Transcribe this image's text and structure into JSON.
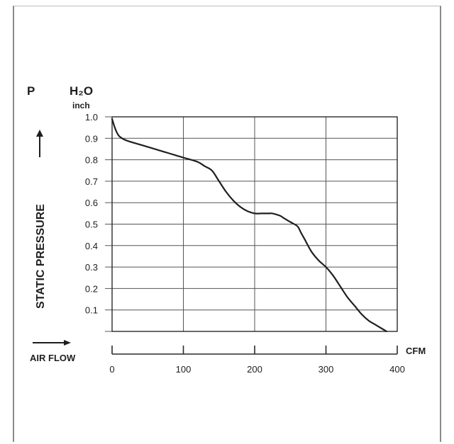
{
  "chart_data": {
    "type": "line",
    "y_label_top": "P",
    "unit_label": "H₂O",
    "unit_sublabel": "inch",
    "ylabel": "STATIC PRESSURE",
    "xlabel": "AIR FLOW",
    "x_unit": "CFM",
    "xlim": [
      0,
      400
    ],
    "ylim": [
      0,
      1.0
    ],
    "x_ticks": [
      "0",
      "100",
      "200",
      "300",
      "400"
    ],
    "y_ticks": [
      "0.1",
      "0.2",
      "0.3",
      "0.4",
      "0.5",
      "0.6",
      "0.7",
      "0.8",
      "0.9",
      "1.0"
    ],
    "grid": true,
    "series": [
      {
        "x": [
          0,
          5,
          10,
          20,
          40,
          60,
          80,
          100,
          120,
          130,
          140,
          150,
          160,
          170,
          180,
          190,
          200,
          210,
          220,
          225,
          235,
          240,
          250,
          260,
          265,
          270,
          280,
          290,
          300,
          310,
          320,
          330,
          340,
          350,
          360,
          370,
          380,
          385
        ],
        "y": [
          0.99,
          0.94,
          0.91,
          0.89,
          0.87,
          0.85,
          0.83,
          0.81,
          0.79,
          0.77,
          0.75,
          0.7,
          0.65,
          0.61,
          0.58,
          0.56,
          0.55,
          0.55,
          0.55,
          0.55,
          0.54,
          0.53,
          0.51,
          0.49,
          0.46,
          0.43,
          0.37,
          0.33,
          0.3,
          0.26,
          0.21,
          0.16,
          0.12,
          0.08,
          0.05,
          0.03,
          0.01,
          0.0
        ]
      }
    ],
    "colors": {
      "line": "#1f1f1f",
      "grid": "#555555",
      "text": "#1e1e1e"
    }
  }
}
